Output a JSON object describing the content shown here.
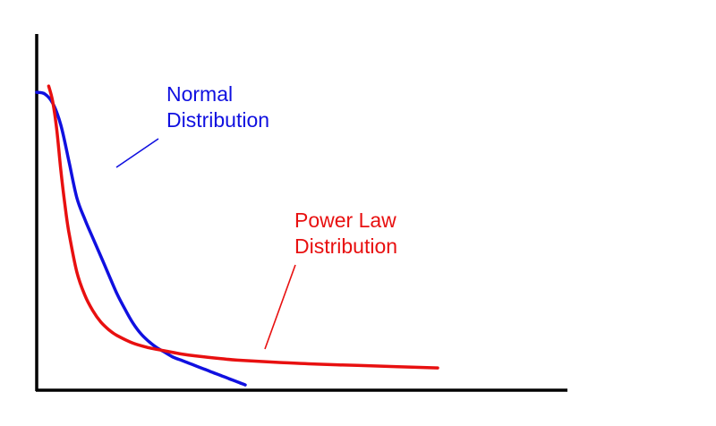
{
  "chart_data": {
    "type": "line",
    "title": "",
    "xlabel": "",
    "ylabel": "",
    "xlim": [
      0,
      100
    ],
    "ylim": [
      0,
      100
    ],
    "grid": false,
    "legend": "none",
    "series": [
      {
        "color": "#1010e0",
        "x": [
          0,
          2,
          4,
          6,
          8,
          10,
          12,
          14,
          16,
          18,
          20,
          22,
          24,
          26,
          28,
          30,
          32,
          34,
          36,
          38,
          40,
          42,
          44,
          46,
          48,
          50,
          52
        ],
        "y": [
          91,
          90.5,
          87.5,
          80.5,
          69,
          57,
          50,
          44,
          38,
          32,
          26,
          21,
          16.5,
          13,
          10.5,
          8.5,
          7,
          5.5,
          4.5,
          3.5,
          2.5,
          1.5,
          0.5,
          -0.5,
          -1.5,
          -2.5,
          -3.5
        ]
      },
      {
        "color": "#e81010",
        "x": [
          3,
          4,
          5,
          6,
          7,
          8,
          10,
          12,
          14,
          16,
          18,
          20,
          24,
          28,
          32,
          36,
          40,
          46,
          50,
          60,
          70,
          80,
          90,
          100
        ],
        "y": [
          93,
          88,
          79,
          66,
          55,
          46,
          33,
          25.5,
          20.5,
          16.8,
          14.3,
          12.5,
          10,
          8.5,
          7.5,
          6.5,
          5.8,
          5.0,
          4.5,
          3.8,
          3.2,
          2.8,
          2.4,
          2.0
        ]
      }
    ],
    "annotations": [
      {
        "text_lines": [
          "Normal",
          "Distribution"
        ],
        "color": "#1010e0",
        "target": [
          20,
          68
        ]
      },
      {
        "text_lines": [
          "Power Law",
          "Distribution"
        ],
        "color": "#e81010",
        "target": [
          57,
          11
        ]
      }
    ]
  }
}
